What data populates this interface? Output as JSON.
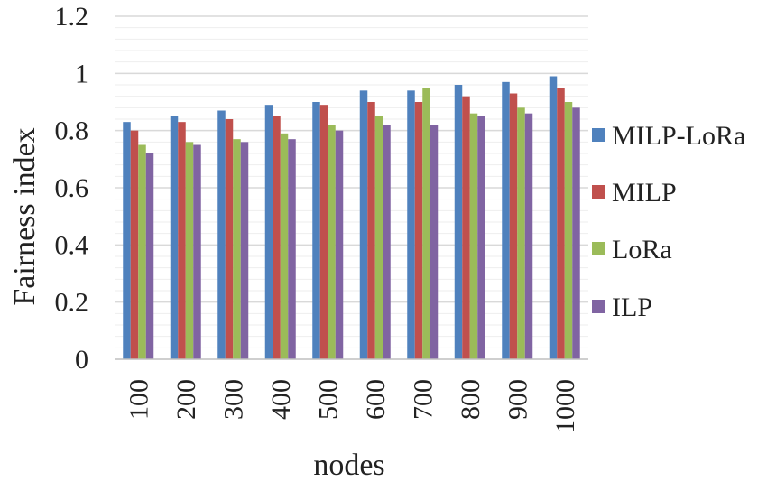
{
  "chart_data": {
    "type": "bar",
    "title": "",
    "xlabel": "nodes",
    "ylabel": "Fairness index",
    "categories": [
      "100",
      "200",
      "300",
      "400",
      "500",
      "600",
      "700",
      "800",
      "900",
      "1000"
    ],
    "ylim": [
      0,
      1.2
    ],
    "yticks": [
      "0",
      "0.2",
      "0.4",
      "0.6",
      "0.8",
      "1",
      "1.2"
    ],
    "grid": true,
    "legend_position": "right",
    "series": [
      {
        "name": "MILP-LoRa",
        "color": "#4f81bd",
        "values": [
          0.83,
          0.85,
          0.87,
          0.89,
          0.9,
          0.94,
          0.94,
          0.96,
          0.97,
          0.99
        ]
      },
      {
        "name": "MILP",
        "color": "#c0504d",
        "values": [
          0.8,
          0.83,
          0.84,
          0.85,
          0.89,
          0.9,
          0.9,
          0.92,
          0.93,
          0.95
        ]
      },
      {
        "name": "LoRa",
        "color": "#9bbb59",
        "values": [
          0.75,
          0.76,
          0.77,
          0.79,
          0.82,
          0.85,
          0.95,
          0.86,
          0.88,
          0.9
        ]
      },
      {
        "name": "ILP",
        "color": "#8064a2",
        "values": [
          0.72,
          0.75,
          0.76,
          0.77,
          0.8,
          0.82,
          0.82,
          0.85,
          0.86,
          0.88
        ]
      }
    ]
  }
}
